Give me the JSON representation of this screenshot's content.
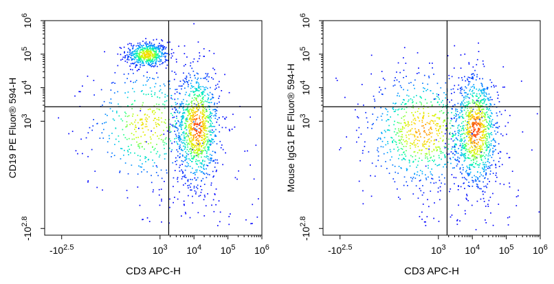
{
  "chart_data": [
    {
      "type": "scatter",
      "panel": "left",
      "xlabel": "CD3 APC-H",
      "ylabel": "CD19 PE Fluor® 594-H",
      "x_scale": "logicle",
      "y_scale": "logicle",
      "x_ticks": [
        {
          "base": "-10",
          "exp": "2.5",
          "value": -316
        },
        {
          "base": "10",
          "exp": "3",
          "value": 1000
        },
        {
          "base": "10",
          "exp": "4",
          "value": 10000
        },
        {
          "base": "10",
          "exp": "5",
          "value": 100000
        },
        {
          "base": "10",
          "exp": "6",
          "value": 1000000
        }
      ],
      "y_ticks": [
        {
          "base": "-10",
          "exp": "2.8",
          "value": -631
        },
        {
          "base": "10",
          "exp": "3",
          "value": 1000
        },
        {
          "base": "10",
          "exp": "4",
          "value": 10000
        },
        {
          "base": "10",
          "exp": "5",
          "value": 100000
        },
        {
          "base": "10",
          "exp": "6",
          "value": 1000000
        }
      ],
      "xlim": [
        -1000,
        1000000
      ],
      "ylim": [
        -1000,
        1000000
      ],
      "quadrant_gate": {
        "x": 1800,
        "y": 2700
      },
      "populations": [
        {
          "x_center": 400,
          "y_center": 100000,
          "x_spread": [
            120,
            1600
          ],
          "y_spread": [
            40000,
            250000
          ],
          "relative_density": 0.55
        },
        {
          "x_center": 400,
          "y_center": 800,
          "x_spread": [
            -800,
            1600
          ],
          "y_spread": [
            -800,
            2500
          ],
          "relative_density": 0.45
        },
        {
          "x_center": 12000,
          "y_center": 700,
          "x_spread": [
            2500,
            60000
          ],
          "y_spread": [
            -800,
            2500
          ],
          "relative_density": 1.0
        }
      ]
    },
    {
      "type": "scatter",
      "panel": "right",
      "xlabel": "CD3 APC-H",
      "ylabel": "Mouse IgG1 PE Fluor® 594-H",
      "x_scale": "logicle",
      "y_scale": "logicle",
      "x_ticks": [
        {
          "base": "-10",
          "exp": "2.5",
          "value": -316
        },
        {
          "base": "10",
          "exp": "3",
          "value": 1000
        },
        {
          "base": "10",
          "exp": "4",
          "value": 10000
        },
        {
          "base": "10",
          "exp": "5",
          "value": 100000
        },
        {
          "base": "10",
          "exp": "6",
          "value": 1000000
        }
      ],
      "y_ticks": [
        {
          "base": "-10",
          "exp": "2.8",
          "value": -631
        },
        {
          "base": "10",
          "exp": "3",
          "value": 1000
        },
        {
          "base": "10",
          "exp": "4",
          "value": 10000
        },
        {
          "base": "10",
          "exp": "5",
          "value": 100000
        },
        {
          "base": "10",
          "exp": "6",
          "value": 1000000
        }
      ],
      "xlim": [
        -1000,
        1000000
      ],
      "ylim": [
        -1000,
        1000000
      ],
      "quadrant_gate": {
        "x": 1800,
        "y": 2700
      },
      "populations": [
        {
          "x_center": 350,
          "y_center": 550,
          "x_spread": [
            -800,
            1600
          ],
          "y_spread": [
            -800,
            2200
          ],
          "relative_density": 0.75
        },
        {
          "x_center": 12000,
          "y_center": 550,
          "x_spread": [
            2500,
            70000
          ],
          "y_spread": [
            -800,
            2200
          ],
          "relative_density": 1.0
        }
      ]
    }
  ],
  "colormap": [
    "#0000ff",
    "#00b4ff",
    "#00ffa0",
    "#c8ff00",
    "#ffd200",
    "#ff3000"
  ]
}
